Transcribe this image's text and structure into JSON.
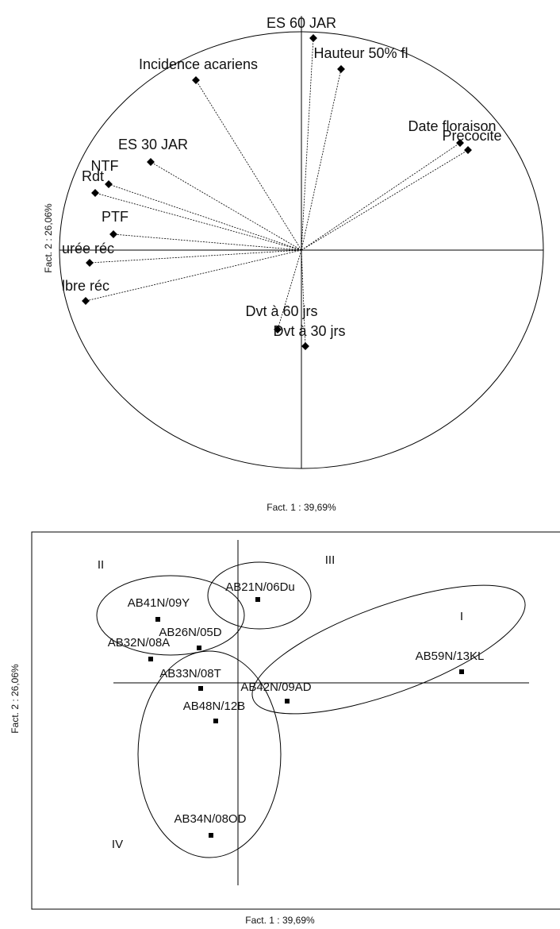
{
  "correlation_circle": {
    "variables": [
      "ES 60 JAR",
      "Hauteur 50% fl",
      "Incidence acariens",
      "Date floraison",
      "Precocite",
      "ES 30 JAR",
      "NTF",
      "Rdt",
      "PTF",
      "urée réc",
      "lbre réc",
      "Dvt à 60 jrs",
      "Dvt à 30 jrs"
    ],
    "x_axis_label": "Fact. 1  : 39,69%",
    "y_axis_label": "Fact. 2  : 26,06%"
  },
  "individuals_plot": {
    "points": [
      "AB21N/06Du",
      "AB41N/09Y",
      "AB26N/05D",
      "AB32N/08A",
      "AB33N/08T",
      "AB42N/09AD",
      "AB48N/12B",
      "AB59N/13KL",
      "AB34N/08OD"
    ],
    "groups": [
      "I",
      "II",
      "III",
      "IV"
    ],
    "x_axis_label": "Fact. 1 : 39,69%",
    "y_axis_label": "Fact. 2 : 26,06%"
  }
}
